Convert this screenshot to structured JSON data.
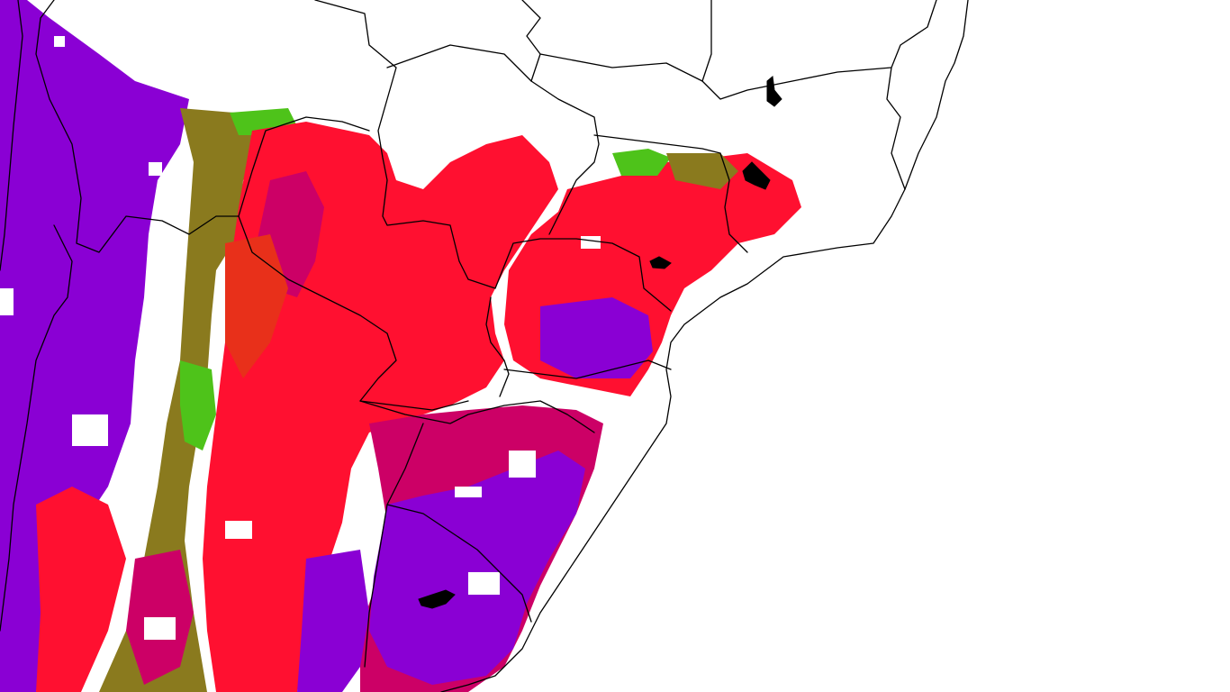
{
  "map": {
    "background_color": "#ffffff",
    "boundary_color": "#000000",
    "legend_shown": false,
    "labels_shown": false
  },
  "palette": {
    "purple": "#8a00d4",
    "magenta": "#cc0066",
    "red": "#ff1030",
    "red_orange": "#e8301a",
    "olive": "#8a7a1e",
    "green": "#4ec31a",
    "white": "#ffffff"
  }
}
